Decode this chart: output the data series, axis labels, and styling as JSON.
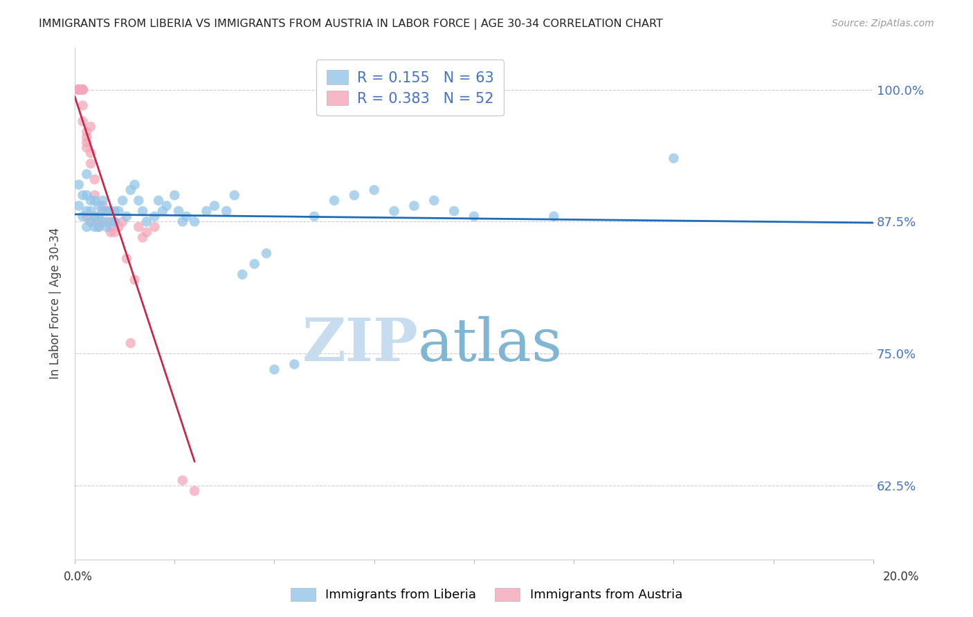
{
  "title": "IMMIGRANTS FROM LIBERIA VS IMMIGRANTS FROM AUSTRIA IN LABOR FORCE | AGE 30-34 CORRELATION CHART",
  "source": "Source: ZipAtlas.com",
  "ylabel": "In Labor Force | Age 30-34",
  "ylabel_ticks": [
    0.625,
    0.75,
    0.875,
    1.0
  ],
  "ylabel_tick_labels": [
    "62.5%",
    "75.0%",
    "87.5%",
    "100.0%"
  ],
  "xmin": 0.0,
  "xmax": 0.2,
  "ymin": 0.555,
  "ymax": 1.04,
  "legend_label1": "Immigrants from Liberia",
  "legend_label2": "Immigrants from Austria",
  "R_liberia": 0.155,
  "N_liberia": 63,
  "R_austria": 0.383,
  "N_austria": 52,
  "color_liberia": "#92C5E8",
  "color_austria": "#F4A7B9",
  "line_color_liberia": "#1E6BB8",
  "line_color_austria": "#C8294A",
  "watermark_zip": "ZIP",
  "watermark_atlas": "atlas",
  "watermark_color_zip": "#C8DCF0",
  "watermark_color_atlas": "#7EB6D4",
  "liberia_x": [
    0.001,
    0.001,
    0.002,
    0.002,
    0.003,
    0.003,
    0.003,
    0.003,
    0.004,
    0.004,
    0.004,
    0.005,
    0.005,
    0.005,
    0.006,
    0.006,
    0.006,
    0.007,
    0.007,
    0.007,
    0.008,
    0.008,
    0.009,
    0.009,
    0.01,
    0.01,
    0.011,
    0.012,
    0.013,
    0.014,
    0.015,
    0.016,
    0.017,
    0.018,
    0.02,
    0.021,
    0.022,
    0.023,
    0.025,
    0.026,
    0.027,
    0.028,
    0.03,
    0.033,
    0.035,
    0.038,
    0.04,
    0.042,
    0.045,
    0.048,
    0.05,
    0.055,
    0.06,
    0.065,
    0.07,
    0.075,
    0.08,
    0.085,
    0.09,
    0.095,
    0.1,
    0.12,
    0.15
  ],
  "liberia_y": [
    0.89,
    0.91,
    0.88,
    0.9,
    0.87,
    0.885,
    0.9,
    0.92,
    0.875,
    0.885,
    0.895,
    0.87,
    0.88,
    0.895,
    0.87,
    0.88,
    0.89,
    0.875,
    0.885,
    0.895,
    0.87,
    0.885,
    0.875,
    0.885,
    0.875,
    0.885,
    0.885,
    0.895,
    0.88,
    0.905,
    0.91,
    0.895,
    0.885,
    0.875,
    0.88,
    0.895,
    0.885,
    0.89,
    0.9,
    0.885,
    0.875,
    0.88,
    0.875,
    0.885,
    0.89,
    0.885,
    0.9,
    0.825,
    0.835,
    0.845,
    0.735,
    0.74,
    0.88,
    0.895,
    0.9,
    0.905,
    0.885,
    0.89,
    0.895,
    0.885,
    0.88,
    0.88,
    0.935
  ],
  "austria_x": [
    0.001,
    0.001,
    0.001,
    0.001,
    0.001,
    0.001,
    0.001,
    0.001,
    0.001,
    0.001,
    0.001,
    0.001,
    0.002,
    0.002,
    0.002,
    0.002,
    0.002,
    0.002,
    0.002,
    0.003,
    0.003,
    0.003,
    0.003,
    0.003,
    0.004,
    0.004,
    0.004,
    0.004,
    0.005,
    0.005,
    0.005,
    0.006,
    0.006,
    0.007,
    0.007,
    0.008,
    0.008,
    0.009,
    0.009,
    0.01,
    0.01,
    0.011,
    0.012,
    0.013,
    0.014,
    0.015,
    0.016,
    0.017,
    0.018,
    0.02,
    0.027,
    0.03
  ],
  "austria_y": [
    1.0,
    1.0,
    1.0,
    1.0,
    1.0,
    1.0,
    1.0,
    1.0,
    1.0,
    1.0,
    1.0,
    1.0,
    1.0,
    1.0,
    1.0,
    1.0,
    1.0,
    0.985,
    0.97,
    0.96,
    0.955,
    0.95,
    0.945,
    0.88,
    0.965,
    0.94,
    0.93,
    0.875,
    0.915,
    0.9,
    0.88,
    0.875,
    0.87,
    0.89,
    0.885,
    0.885,
    0.875,
    0.87,
    0.865,
    0.875,
    0.865,
    0.87,
    0.875,
    0.84,
    0.76,
    0.82,
    0.87,
    0.86,
    0.865,
    0.87,
    0.63,
    0.62
  ]
}
